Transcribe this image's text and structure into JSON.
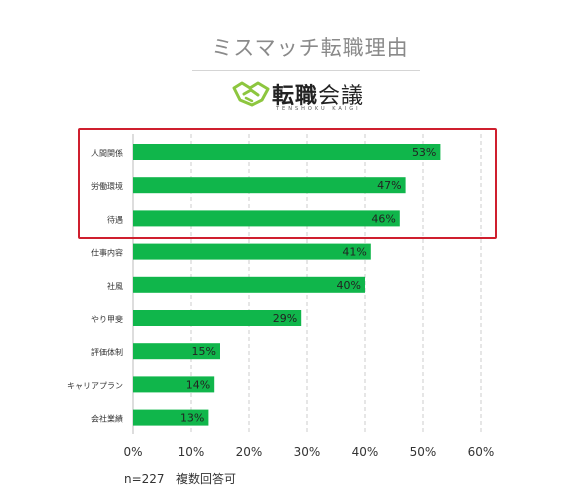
{
  "header": {
    "title": "ミスマッチ転職理由",
    "logo": {
      "main": "転職",
      "suffix": "会議",
      "sub": "TENSHOKU KAIGI",
      "icon": "handshake-icon",
      "color": "#8dc63f"
    }
  },
  "footnote": {
    "sample": "n=227",
    "note": "複数回答可"
  },
  "colors": {
    "bar": "#10b64b",
    "highlight": "#cf1f2e",
    "grid": "#cccccc"
  },
  "chart_data": {
    "type": "bar",
    "orientation": "horizontal",
    "title": "ミスマッチ転職理由",
    "categories": [
      "人間関係",
      "労働環境",
      "待遇",
      "仕事内容",
      "社風",
      "やり甲斐",
      "評価体制",
      "キャリアプラン",
      "会社業績"
    ],
    "values": [
      53,
      47,
      46,
      41,
      40,
      29,
      15,
      14,
      13
    ],
    "value_labels": [
      "53%",
      "47%",
      "46%",
      "41%",
      "40%",
      "29%",
      "15%",
      "14%",
      "13%"
    ],
    "xticks": [
      "0%",
      "10%",
      "20%",
      "30%",
      "40%",
      "50%",
      "60%"
    ],
    "xlim": [
      0,
      60
    ],
    "grid": "vertical-dashed",
    "highlighted_categories": [
      "人間関係",
      "労働環境",
      "待遇"
    ]
  }
}
